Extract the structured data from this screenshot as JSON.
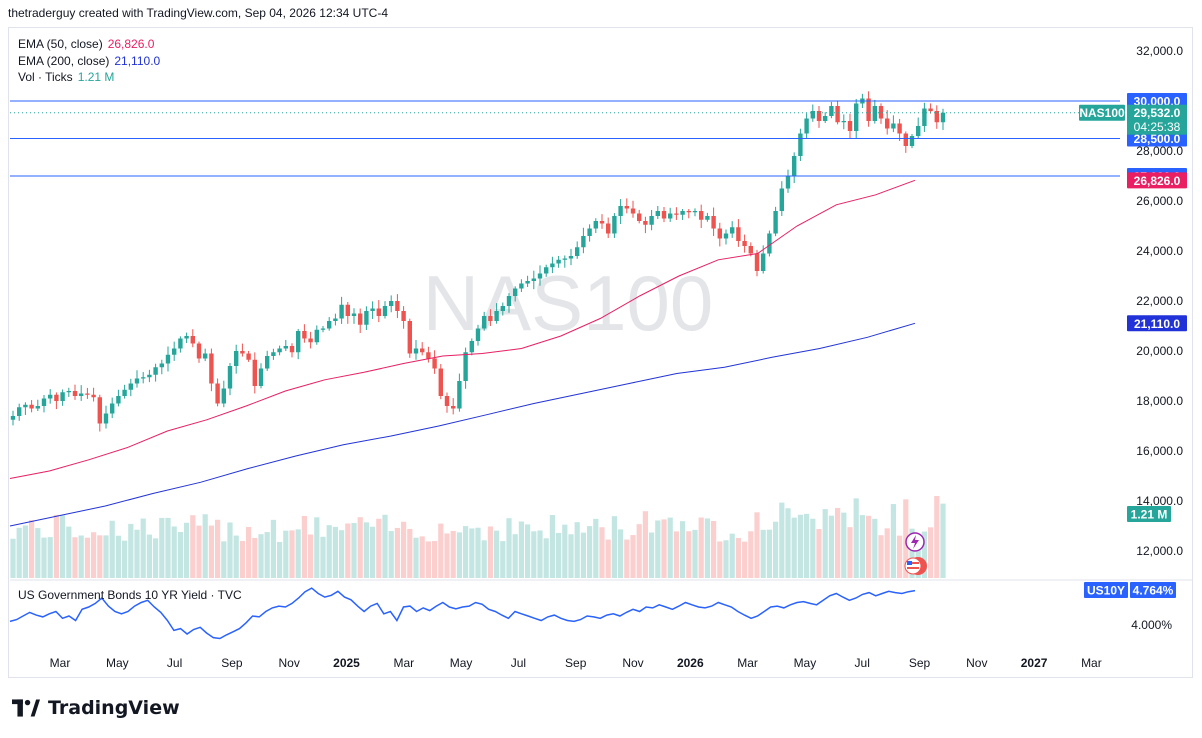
{
  "header": {
    "text": "thetraderguy created with TradingView.com, Sep 04, 2026 12:34 UTC-4"
  },
  "legend": {
    "ema50": {
      "label": "EMA (50, close)",
      "value": "26,826.0"
    },
    "ema200": {
      "label": "EMA (200, close)",
      "value": "21,110.0"
    },
    "vol": {
      "label": "Vol · Ticks",
      "value": "1.21 M"
    }
  },
  "watermark": "NAS100",
  "subpane": {
    "title": "US Government Bonds 10 YR Yield · TVC"
  },
  "footer": {
    "brand": "TradingView"
  },
  "colors": {
    "up": "#26a69a",
    "down": "#ef5350",
    "ema50": "#e91e63",
    "ema200": "#2133d8",
    "hline": "#2962ff",
    "yield": "#2962ff",
    "price_tag": "#2962ff"
  },
  "chart_data": {
    "type": "candlestick",
    "symbol": "NAS100",
    "timeframe": "weekly",
    "y_ticks": [
      "32,000.0",
      "30,000.0",
      "28,000.0",
      "26,000.0",
      "24,000.0",
      "22,000.0",
      "20,000.0",
      "18,000.0",
      "16,000.0",
      "14,000.0",
      "12,000.0"
    ],
    "ylim": [
      11500,
      33000
    ],
    "x_ticks": [
      "Mar",
      "May",
      "Jul",
      "Sep",
      "Nov",
      "2025",
      "Mar",
      "May",
      "Jul",
      "Sep",
      "Nov",
      "2026",
      "Mar",
      "May",
      "Jul",
      "Sep",
      "Nov",
      "2027",
      "Mar"
    ],
    "x_tick_bold": [
      "2025",
      "2026",
      "2027"
    ],
    "horizontal_lines": [
      {
        "value": 30000,
        "label": "30,000.0"
      },
      {
        "value": 28500,
        "label": "28,500.0"
      },
      {
        "value": 27000,
        "label": "27,000.0"
      }
    ],
    "last_price": {
      "symbol_tag": "NAS100",
      "value": 29532,
      "label": "29,532.0",
      "countdown": "04:25:38"
    },
    "ema50_tag": {
      "value": 26826,
      "label": "26,826.0"
    },
    "ema200_tag": {
      "value": 21110,
      "label": "21,110.0"
    },
    "volume_tag": "1.21 M",
    "closes": [
      17400,
      17750,
      17850,
      17700,
      17800,
      18100,
      18250,
      18000,
      18350,
      18400,
      18200,
      18300,
      18250,
      18150,
      17100,
      17500,
      17900,
      18200,
      18450,
      18700,
      18900,
      18950,
      19050,
      19350,
      19500,
      19850,
      20100,
      20500,
      20600,
      20300,
      19700,
      19900,
      18700,
      17900,
      18500,
      19400,
      20000,
      19900,
      19650,
      18600,
      19300,
      19800,
      19950,
      20100,
      20200,
      19950,
      20800,
      20500,
      20350,
      20850,
      20900,
      21200,
      21300,
      21850,
      21400,
      21500,
      21050,
      21600,
      21700,
      21400,
      21800,
      22000,
      21600,
      21200,
      19900,
      20100,
      19950,
      19700,
      19300,
      18200,
      17800,
      17700,
      18800,
      19950,
      20400,
      20900,
      21400,
      21200,
      21600,
      21800,
      22200,
      22500,
      22700,
      22800,
      22900,
      23100,
      23350,
      23500,
      23650,
      23700,
      23800,
      24150,
      24600,
      24900,
      25200,
      25100,
      24700,
      25400,
      25800,
      25700,
      25500,
      25200,
      25050,
      25400,
      25600,
      25300,
      25500,
      25450,
      25600,
      25550,
      25600,
      25250,
      25400,
      24900,
      24500,
      24700,
      24950,
      24400,
      24200,
      23900,
      23200,
      23900,
      24700,
      25600,
      26500,
      27000,
      27800,
      28700,
      29300,
      29600,
      29200,
      29400,
      29800,
      29150,
      29200,
      28800,
      29900,
      30100,
      29200,
      29800,
      29300,
      28900,
      29100,
      28700,
      28200,
      28600,
      29000,
      29700,
      29600,
      29150,
      29532
    ],
    "ema50": [
      14900,
      15200,
      15650,
      16150,
      16800,
      17250,
      17800,
      18400,
      18850,
      19150,
      19500,
      19800,
      19900,
      20100,
      20600,
      21300,
      22200,
      23000,
      23650,
      23900,
      25000,
      25850,
      26250,
      26826
    ],
    "ema200": [
      13000,
      13400,
      13800,
      14300,
      14750,
      15300,
      15800,
      16250,
      16600,
      17000,
      17450,
      17900,
      18300,
      18700,
      19100,
      19350,
      19750,
      20100,
      20550,
      21110
    ],
    "volume_scale_max": 1.75,
    "subpane_series": {
      "name": "US Government Bonds 10 YR Yield",
      "tag": "US10Y",
      "last_label": "4.764%",
      "tick_label": "4.000%",
      "values": [
        4.08,
        4.12,
        4.2,
        4.28,
        4.22,
        4.18,
        4.25,
        4.3,
        4.15,
        4.2,
        4.1,
        4.35,
        4.4,
        4.48,
        4.6,
        4.42,
        4.3,
        4.25,
        4.3,
        4.42,
        4.5,
        4.55,
        4.4,
        4.28,
        4.1,
        3.88,
        3.92,
        3.8,
        3.9,
        3.95,
        3.82,
        3.72,
        3.7,
        3.78,
        3.85,
        3.92,
        4.05,
        4.2,
        4.18,
        4.3,
        4.38,
        4.42,
        4.4,
        4.48,
        4.6,
        4.74,
        4.82,
        4.7,
        4.62,
        4.66,
        4.75,
        4.62,
        4.56,
        4.42,
        4.3,
        4.42,
        4.48,
        4.25,
        4.3,
        4.1,
        4.4,
        4.42,
        4.3,
        4.38,
        4.32,
        4.42,
        4.5,
        4.4,
        4.36,
        4.4,
        4.42,
        4.5,
        4.46,
        4.35,
        4.3,
        4.22,
        4.15,
        4.3,
        4.25,
        4.2,
        4.15,
        4.1,
        4.18,
        4.22,
        4.15,
        4.1,
        4.08,
        4.12,
        4.2,
        4.18,
        4.15,
        4.22,
        4.25,
        4.2,
        4.28,
        4.35,
        4.3,
        4.4,
        4.38,
        4.45,
        4.4,
        4.35,
        4.42,
        4.5,
        4.45,
        4.4,
        4.38,
        4.42,
        4.5,
        4.45,
        4.4,
        4.3,
        4.22,
        4.15,
        4.2,
        4.3,
        4.4,
        4.42,
        4.38,
        4.45,
        4.5,
        4.52,
        4.48,
        4.45,
        4.55,
        4.65,
        4.7,
        4.62,
        4.55,
        4.6,
        4.68,
        4.72,
        4.65,
        4.7,
        4.75,
        4.72,
        4.7,
        4.74,
        4.764
      ]
    }
  }
}
